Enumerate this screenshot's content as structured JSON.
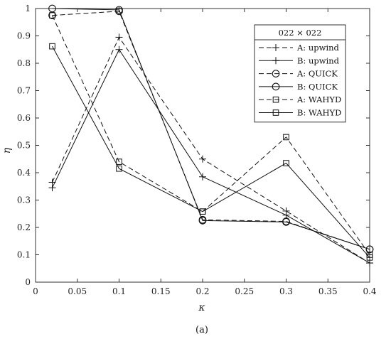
{
  "chart_data": {
    "type": "line",
    "x": [
      0.02,
      0.1,
      0.2,
      0.3,
      0.4
    ],
    "xlim": [
      0,
      0.4
    ],
    "ylim": [
      0,
      1
    ],
    "x_ticks": [
      0,
      0.05,
      0.1,
      0.15,
      0.2,
      0.25,
      0.3,
      0.35,
      0.4
    ],
    "y_ticks": [
      0,
      0.1,
      0.2,
      0.3,
      0.4,
      0.5,
      0.6,
      0.7,
      0.8,
      0.9,
      1
    ],
    "x_tick_labels": [
      "0",
      "0.05",
      "0.1",
      "0.15",
      "0.2",
      "0.25",
      "0.3",
      "0.35",
      "0.4"
    ],
    "y_tick_labels": [
      "0",
      "0.1",
      "0.2",
      "0.3",
      "0.4",
      "0.5",
      "0.6",
      "0.7",
      "0.8",
      "0.9",
      "1"
    ],
    "xlabel": "κ",
    "ylabel": "η",
    "caption": "(a)",
    "legend_title": "022 × 022",
    "legend_position": "top-right",
    "grid": false,
    "series": [
      {
        "name": "A: upwind",
        "marker": "plus",
        "dash": true,
        "values": [
          0.365,
          0.895,
          0.45,
          0.26,
          0.07
        ]
      },
      {
        "name": "B: upwind",
        "marker": "plus",
        "dash": false,
        "values": [
          0.345,
          0.85,
          0.385,
          0.245,
          0.07
        ]
      },
      {
        "name": "A: QUICK",
        "marker": "circle",
        "dash": true,
        "values": [
          0.975,
          0.99,
          0.228,
          0.222,
          0.12
        ]
      },
      {
        "name": "B: QUICK",
        "marker": "circle",
        "dash": false,
        "values": [
          1.0,
          0.995,
          0.225,
          0.22,
          0.12
        ]
      },
      {
        "name": "A: WAHYD",
        "marker": "square",
        "dash": true,
        "values": [
          0.975,
          0.44,
          0.258,
          0.53,
          0.1
        ]
      },
      {
        "name": "B: WAHYD",
        "marker": "square",
        "dash": false,
        "values": [
          0.862,
          0.415,
          0.258,
          0.435,
          0.09
        ]
      }
    ]
  }
}
